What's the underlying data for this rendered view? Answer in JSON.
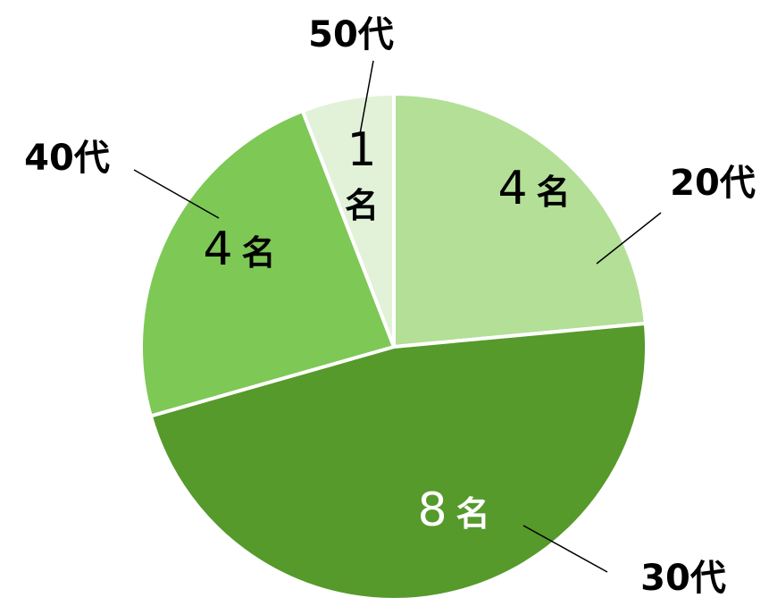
{
  "chart_data": {
    "type": "pie",
    "unit": "名",
    "categories": [
      "20代",
      "30代",
      "40代",
      "50代"
    ],
    "values": [
      4,
      8,
      4,
      1
    ],
    "colors": [
      "#b3df97",
      "#559a2b",
      "#7ec856",
      "#e2f2d9"
    ],
    "label_colors": [
      "#000000",
      "#ffffff",
      "#000000",
      "#000000"
    ],
    "start_angle_deg": 0,
    "direction": "clockwise",
    "legend": "none",
    "title": ""
  }
}
